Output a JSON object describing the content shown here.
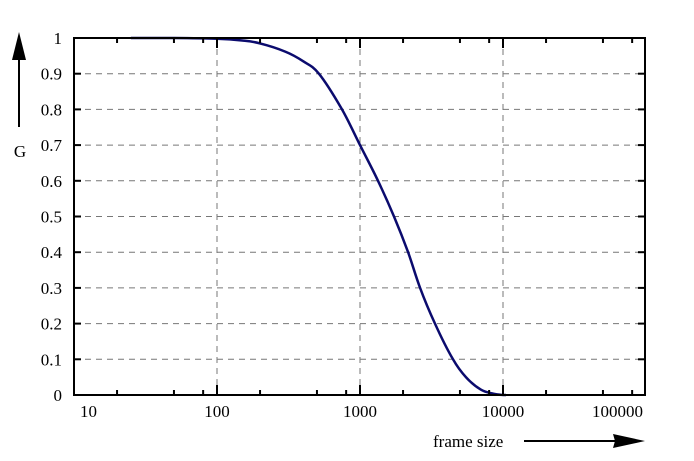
{
  "chart_data": {
    "type": "line",
    "title": "",
    "xlabel": "frame size",
    "ylabel": "G",
    "xscale": "log",
    "xlim": [
      10,
      100000
    ],
    "ylim": [
      0,
      1
    ],
    "grid": true,
    "legend": null,
    "x_ticks": [
      10,
      100,
      1000,
      10000,
      100000
    ],
    "x_tick_labels": [
      "10",
      "100",
      "1000",
      "10000",
      "100000"
    ],
    "x_minor_ticks_per_decade": [
      2,
      5,
      8
    ],
    "y_ticks": [
      0,
      0.1,
      0.2,
      0.3,
      0.4,
      0.5,
      0.6,
      0.7,
      0.8,
      0.9,
      1
    ],
    "y_tick_labels": [
      "0",
      "0.1",
      "0.2",
      "0.3",
      "0.4",
      "0.5",
      "0.6",
      "0.7",
      "0.8",
      "0.9",
      "1"
    ],
    "series": [
      {
        "name": "G",
        "color": "#0b0b6e",
        "x": [
          25,
          50,
          100,
          150,
          200,
          300,
          400,
          516,
          748,
          1000,
          1337,
          1729,
          2168,
          2630,
          3343,
          4470,
          5500,
          7000,
          8500,
          10000,
          10500
        ],
        "y": [
          1.0,
          1.0,
          0.998,
          0.993,
          0.985,
          0.962,
          0.935,
          0.9,
          0.8,
          0.7,
          0.6,
          0.5,
          0.4,
          0.3,
          0.2,
          0.1,
          0.05,
          0.015,
          0.004,
          0.0,
          0.0
        ]
      }
    ]
  },
  "colors": {
    "curve": "#0b0b6e",
    "grid": "#777777",
    "axis": "#000000"
  }
}
